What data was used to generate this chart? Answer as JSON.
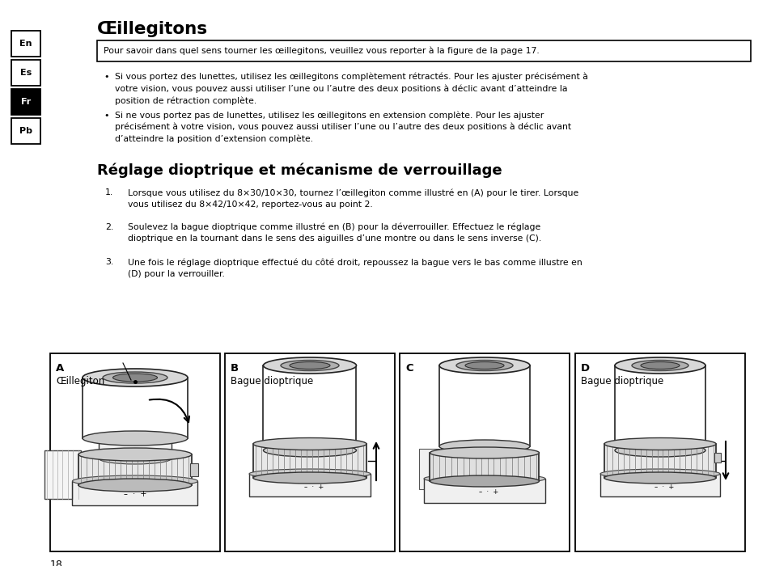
{
  "bg_color": "#ffffff",
  "title1": "Œillegitons",
  "notice": "Pour savoir dans quel sens tourner les œillegitons, veuillez vous reporter à la figure de la page 17.",
  "bullet1_lines": [
    "Si vous portez des lunettes, utilisez les œillegitons complètement rétractés. Pour les ajuster précisément à",
    "votre vision, vous pouvez aussi utiliser l’une ou l’autre des deux positions à déclic avant d’atteindre la",
    "position de rétraction complète."
  ],
  "bullet2_lines": [
    "Si ne vous portez pas de lunettes, utilisez les œillegitons en extension complète. Pour les ajuster",
    "précisément à votre vision, vous pouvez aussi utiliser l’une ou l’autre des deux positions à déclic avant",
    "d’atteindre la position d’extension complète."
  ],
  "title2": "Réglage dioptrique et mécanisme de verrouillage",
  "item1_lines": [
    "Lorsque vous utilisez du 8×30/10×30, tournez l’œillegiton comme illustré en (A) pour le tirer. Lorsque",
    "vous utilisez du 8×42/10×42, reportez-vous au point 2."
  ],
  "item2_lines": [
    "Soulevez la bague dioptrique comme illustré en (B) pour la déverrouiller. Effectuez le réglage",
    "dioptrique en la tournant dans le sens des aiguilles d’une montre ou dans le sens inverse (C)."
  ],
  "item3_lines": [
    "Une fois le réglage dioptrique effectué du côté droit, repoussez la bague vers le bas comme illustre en",
    "(D) pour la verrouiller."
  ],
  "tabs": [
    "En",
    "Es",
    "Fr",
    "Pb"
  ],
  "active_tab": "Fr",
  "page_num": "18",
  "diags": [
    {
      "label": "A",
      "sublabel": "Œillegiton"
    },
    {
      "label": "B",
      "sublabel": "Bague dioptrique"
    },
    {
      "label": "C",
      "sublabel": ""
    },
    {
      "label": "D",
      "sublabel": "Bague dioptrique"
    }
  ]
}
